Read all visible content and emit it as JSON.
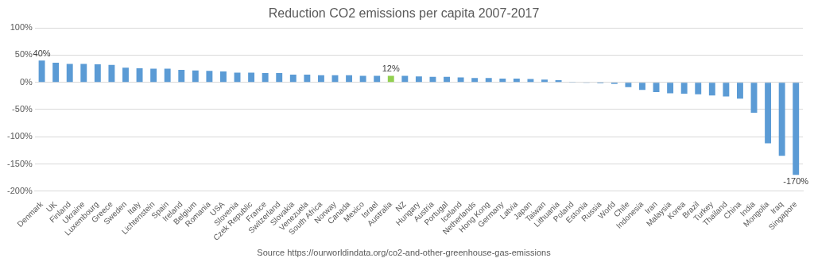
{
  "chart_data": {
    "type": "bar",
    "title": "Reduction CO2 emissions per capita 2007-2017",
    "source": "Source https://ourworldindata.org/co2-and-other-greenhouse-gas-emissions",
    "categories": [
      "Denmark",
      "UK",
      "Finland",
      "Ukraine",
      "Luxembourg",
      "Greece",
      "Sweden",
      "Italy",
      "Lichtenstein",
      "Spain",
      "Ireland",
      "Belgium",
      "Romania",
      "USA",
      "Slovenia",
      "Czek Republic",
      "France",
      "Switzerland",
      "Slovakia",
      "Venezuela",
      "South Africa",
      "Norway",
      "Canada",
      "Mexico",
      "Israel",
      "Australia",
      "NZ",
      "Hungary",
      "Austria",
      "Portugal",
      "Iceland",
      "Netherlands",
      "Hong Kong",
      "Germany",
      "Latvia",
      "Japan",
      "Taiwan",
      "Lithuania",
      "Poland",
      "Estonia",
      "Russia",
      "World",
      "Chile",
      "Indonesia",
      "Iran",
      "Malaysia",
      "Korea",
      "Brazil",
      "Turkey",
      "Thailand",
      "China",
      "India",
      "Mongolia",
      "Iraq",
      "Singapore"
    ],
    "values": [
      40,
      36,
      34,
      34,
      33,
      32,
      27,
      26,
      25,
      25,
      23,
      22,
      21,
      20,
      18,
      18,
      17,
      17,
      14,
      14,
      13,
      13,
      13,
      12,
      12,
      12,
      12,
      11,
      10,
      10,
      9,
      8,
      8,
      7,
      7,
      6,
      5,
      4,
      1,
      -1,
      -2,
      -3,
      -9,
      -14,
      -18,
      -20,
      -21,
      -22,
      -24,
      -26,
      -30,
      -56,
      -112,
      -135,
      -170
    ],
    "value_labels": [
      "40%",
      null,
      null,
      null,
      null,
      null,
      null,
      null,
      null,
      null,
      null,
      null,
      null,
      null,
      null,
      null,
      null,
      null,
      null,
      null,
      null,
      null,
      null,
      null,
      null,
      "12%",
      null,
      null,
      null,
      null,
      null,
      null,
      null,
      null,
      null,
      null,
      null,
      null,
      null,
      null,
      null,
      null,
      null,
      null,
      null,
      null,
      null,
      null,
      null,
      null,
      null,
      null,
      null,
      null,
      "-170%"
    ],
    "colors": [
      "#5b9bd5",
      "#5b9bd5",
      "#5b9bd5",
      "#5b9bd5",
      "#5b9bd5",
      "#5b9bd5",
      "#5b9bd5",
      "#5b9bd5",
      "#5b9bd5",
      "#5b9bd5",
      "#5b9bd5",
      "#5b9bd5",
      "#5b9bd5",
      "#5b9bd5",
      "#5b9bd5",
      "#5b9bd5",
      "#5b9bd5",
      "#5b9bd5",
      "#5b9bd5",
      "#5b9bd5",
      "#5b9bd5",
      "#5b9bd5",
      "#5b9bd5",
      "#5b9bd5",
      "#5b9bd5",
      "#92d050",
      "#5b9bd5",
      "#5b9bd5",
      "#5b9bd5",
      "#5b9bd5",
      "#5b9bd5",
      "#5b9bd5",
      "#5b9bd5",
      "#5b9bd5",
      "#5b9bd5",
      "#5b9bd5",
      "#5b9bd5",
      "#5b9bd5",
      "#5b9bd5",
      "#5b9bd5",
      "#5b9bd5",
      "#5b9bd5",
      "#5b9bd5",
      "#5b9bd5",
      "#5b9bd5",
      "#5b9bd5",
      "#5b9bd5",
      "#5b9bd5",
      "#5b9bd5",
      "#5b9bd5",
      "#5b9bd5",
      "#5b9bd5",
      "#5b9bd5",
      "#5b9bd5",
      "#5b9bd5"
    ],
    "ylim": [
      -200,
      100
    ],
    "yticks": [
      {
        "value": -200,
        "label": "-200%"
      },
      {
        "value": -150,
        "label": "-150%"
      },
      {
        "value": -100,
        "label": "-100%"
      },
      {
        "value": -50,
        "label": "-50%"
      },
      {
        "value": 0,
        "label": "0%"
      },
      {
        "value": 50,
        "label": "50%"
      },
      {
        "value": 100,
        "label": "100%"
      }
    ],
    "grid": true
  }
}
